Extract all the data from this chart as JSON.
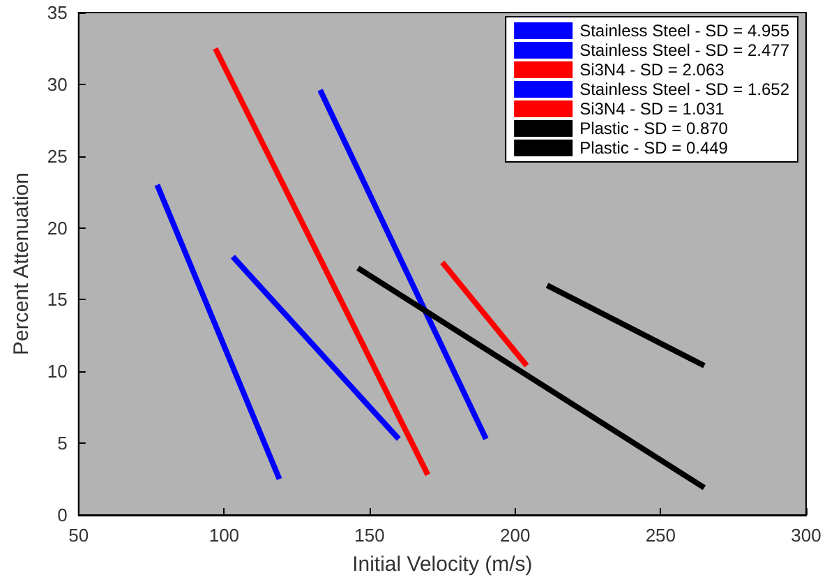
{
  "chart_data": {
    "type": "line",
    "xlabel": "Initial Velocity (m/s)",
    "ylabel": "Percent Attenuation",
    "xlim": [
      50,
      300
    ],
    "xticks": [
      50,
      100,
      150,
      200,
      250,
      300
    ],
    "ylim": [
      0,
      35
    ],
    "yticks": [
      0,
      5,
      10,
      15,
      20,
      25,
      30,
      35
    ],
    "grid": false,
    "legend": "top right",
    "marker": "none",
    "series": [
      {
        "name": "Stainless Steel - SD = 4.955",
        "color": "#0000ff",
        "x": [
          77,
          119
        ],
        "values": [
          23,
          2.5
        ]
      },
      {
        "name": "Stainless Steel - SD = 2.477",
        "color": "#0000ff",
        "x": [
          103,
          160
        ],
        "values": [
          18,
          5.3
        ]
      },
      {
        "name": "Si3N4 - SD = 2.063",
        "color": "#ff0000",
        "x": [
          97,
          170
        ],
        "values": [
          32.5,
          2.8
        ]
      },
      {
        "name": "Stainless Steel - SD = 1.652",
        "color": "#0000ff",
        "x": [
          133,
          190
        ],
        "values": [
          29.6,
          5.3
        ]
      },
      {
        "name": "Si3N4 - SD = 1.031",
        "color": "#ff0000",
        "x": [
          175,
          204
        ],
        "values": [
          17.6,
          10.4
        ]
      },
      {
        "name": "Plastic - SD = 0.870",
        "color": "#000000",
        "x": [
          146,
          265
        ],
        "values": [
          17.2,
          1.9
        ]
      },
      {
        "name": "Plastic - SD = 0.449",
        "color": "#000000",
        "x": [
          211,
          265
        ],
        "values": [
          16,
          10.4
        ]
      }
    ]
  }
}
